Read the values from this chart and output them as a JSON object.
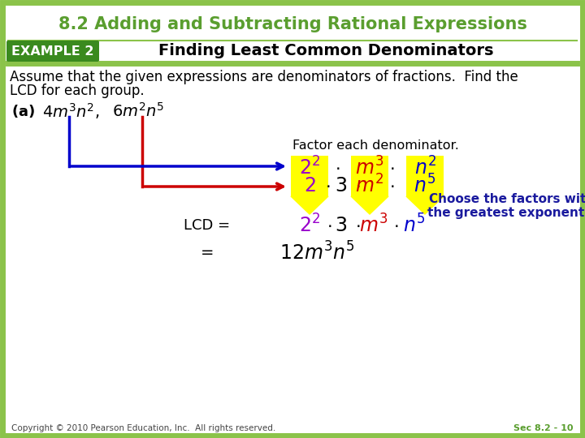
{
  "title": "8.2 Adding and Subtracting Rational Expressions",
  "title_color": "#5a9e2f",
  "title_fontsize": 15,
  "example_label": "EXAMPLE 2",
  "example_bg": "#3a8a1e",
  "example_text_color": "#ffffff",
  "subtitle": "Finding Least Common Denominators",
  "subtitle_color": "#000000",
  "subtitle_fontsize": 14,
  "green_bar_color": "#8bc34a",
  "assume_text1": "Assume that the given expressions are denominators of fractions.  Find the",
  "assume_text2": "LCD for each group.",
  "body_fontsize": 12,
  "body_color": "#000000",
  "factor_text": "Factor each denominator.",
  "row1_colors": [
    "#9900cc",
    "#000000",
    "#cc0000",
    "#000000",
    "#0000cc"
  ],
  "row2_colors": [
    "#9900cc",
    "#000000",
    "#000000",
    "#000000",
    "#cc0000",
    "#000000",
    "#0000cc"
  ],
  "lcd_colors": [
    "#9900cc",
    "#000000",
    "#000000",
    "#000000",
    "#cc0000",
    "#000000",
    "#0000cc"
  ],
  "choose_text1": "Choose the factors with",
  "choose_text2": "the greatest exponents.",
  "choose_color": "#1a1a9e",
  "arrow1_color": "#0000cc",
  "arrow2_color": "#cc0000",
  "yellow_bg": "#ffff00",
  "border_color": "#8bc34a",
  "bg_color": "#ffffff",
  "copyright_text": "Copyright © 2010 Pearson Education, Inc.  All rights reserved.",
  "sec_text": "Sec 8.2 - 10",
  "sec_color": "#5a9e2f",
  "footer_fontsize": 7.5
}
